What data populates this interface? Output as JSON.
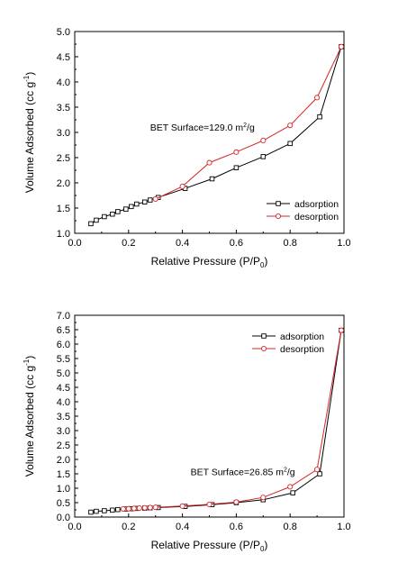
{
  "chart_data": [
    {
      "type": "line",
      "xlabel": "Relative Pressure (P/P",
      "xlabel_sub": "0",
      "xlabel_end": ")",
      "ylabel": "Volume Adsorbed (cc g",
      "ylabel_sup": "-1",
      "ylabel_end": ")",
      "xlim": [
        0.0,
        1.0
      ],
      "ylim": [
        1.0,
        5.0
      ],
      "xticks": [
        0.0,
        0.2,
        0.4,
        0.6,
        0.8,
        1.0
      ],
      "xtick_labels": [
        "0.0",
        "0.2",
        "0.4",
        "0.6",
        "0.8",
        "1.0"
      ],
      "yticks": [
        1.0,
        1.5,
        2.0,
        2.5,
        3.0,
        3.5,
        4.0,
        4.5,
        5.0
      ],
      "ytick_labels": [
        "1.0",
        "1.5",
        "2.0",
        "2.5",
        "3.0",
        "3.5",
        "4.0",
        "4.5",
        "5.0"
      ],
      "annotation": {
        "text": "BET Surface=129.0 m",
        "sup": "2",
        "text_end": "/g",
        "x": 0.28,
        "y": 3.04
      },
      "legend_position": "lower-right",
      "series": [
        {
          "name": "adsorption",
          "color": "#000000",
          "marker": "square",
          "x": [
            0.06,
            0.08,
            0.11,
            0.14,
            0.16,
            0.19,
            0.21,
            0.23,
            0.26,
            0.28,
            0.31,
            0.41,
            0.51,
            0.6,
            0.7,
            0.8,
            0.91,
            0.99
          ],
          "y": [
            1.19,
            1.26,
            1.33,
            1.38,
            1.43,
            1.48,
            1.53,
            1.58,
            1.62,
            1.66,
            1.71,
            1.89,
            2.08,
            2.3,
            2.52,
            2.78,
            3.31,
            4.7
          ]
        },
        {
          "name": "desorption",
          "color": "#d62728",
          "marker": "circle",
          "x": [
            0.99,
            0.9,
            0.8,
            0.7,
            0.6,
            0.5,
            0.4,
            0.3
          ],
          "y": [
            4.7,
            3.69,
            3.14,
            2.84,
            2.61,
            2.4,
            1.93,
            1.68
          ]
        }
      ]
    },
    {
      "type": "line",
      "xlabel": "Relative Pressure (P/P",
      "xlabel_sub": "0",
      "xlabel_end": ")",
      "ylabel": "Volume Adsorbed (cc g",
      "ylabel_sup": "-1",
      "ylabel_end": ")",
      "xlim": [
        0.0,
        1.0
      ],
      "ylim": [
        0.0,
        7.0
      ],
      "xticks": [
        0.0,
        0.2,
        0.4,
        0.6,
        0.8,
        1.0
      ],
      "xtick_labels": [
        "0.0",
        "0.2",
        "0.4",
        "0.6",
        "0.8",
        "1.0"
      ],
      "yticks": [
        0.0,
        0.5,
        1.0,
        1.5,
        2.0,
        2.5,
        3.0,
        3.5,
        4.0,
        4.5,
        5.0,
        5.5,
        6.0,
        6.5,
        7.0
      ],
      "ytick_labels": [
        "0.0",
        "0.5",
        "1.0",
        "1.5",
        "2.0",
        "2.5",
        "3.0",
        "3.5",
        "4.0",
        "4.5",
        "5.0",
        "5.5",
        "6.0",
        "6.5",
        "7.0"
      ],
      "annotation": {
        "text": "BET Surface=26.85 m",
        "sup": "2",
        "text_end": "/g",
        "x": 0.43,
        "y": 1.45
      },
      "legend_position": "top-right",
      "series": [
        {
          "name": "adsorption",
          "color": "#000000",
          "marker": "square",
          "x": [
            0.06,
            0.08,
            0.11,
            0.14,
            0.16,
            0.19,
            0.21,
            0.23,
            0.26,
            0.28,
            0.31,
            0.41,
            0.51,
            0.6,
            0.7,
            0.81,
            0.91,
            0.99
          ],
          "y": [
            0.17,
            0.2,
            0.22,
            0.24,
            0.26,
            0.28,
            0.29,
            0.3,
            0.31,
            0.32,
            0.33,
            0.37,
            0.43,
            0.5,
            0.6,
            0.84,
            1.5,
            6.48
          ]
        },
        {
          "name": "desorption",
          "color": "#d62728",
          "marker": "circle",
          "x": [
            0.99,
            0.9,
            0.8,
            0.7,
            0.6,
            0.5,
            0.4,
            0.3,
            0.28,
            0.26,
            0.24,
            0.22,
            0.2,
            0.18
          ],
          "y": [
            6.48,
            1.65,
            1.05,
            0.68,
            0.52,
            0.44,
            0.38,
            0.34,
            0.33,
            0.32,
            0.31,
            0.3,
            0.29,
            0.28
          ]
        }
      ]
    }
  ]
}
